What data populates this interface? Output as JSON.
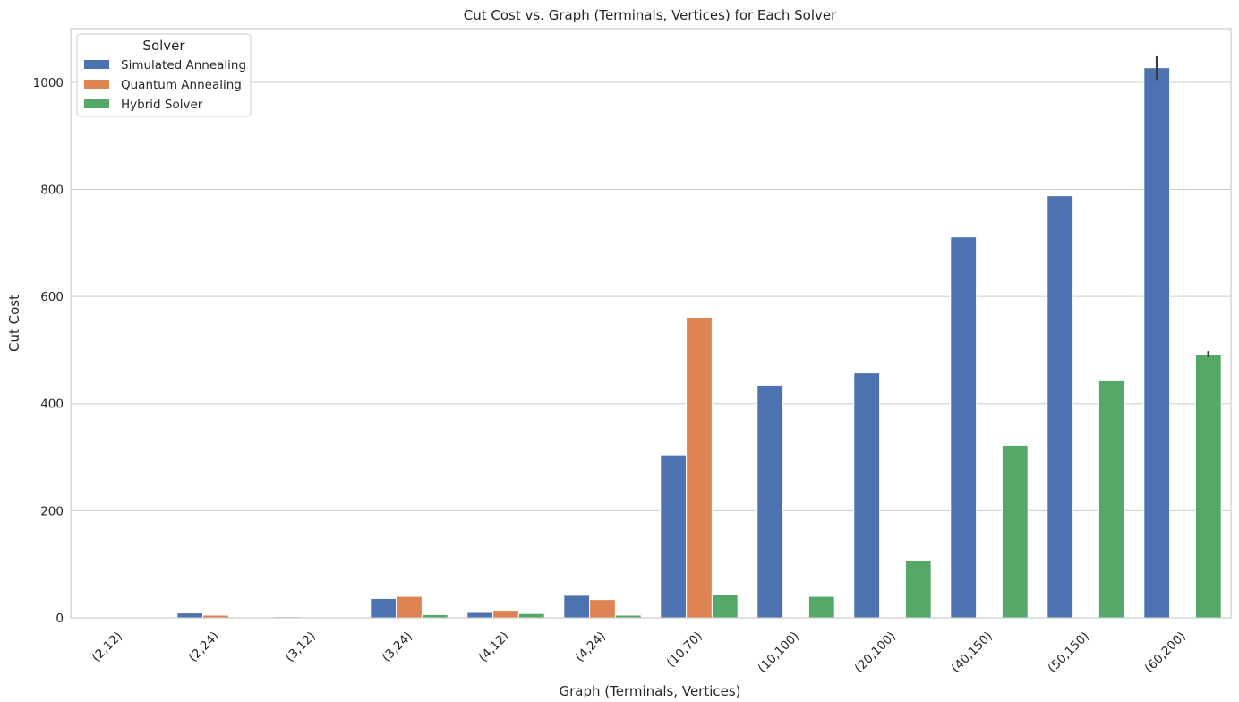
{
  "chart_data": {
    "type": "bar",
    "title": "Cut Cost vs. Graph (Terminals, Vertices) for Each Solver",
    "xlabel": "Graph (Terminals, Vertices)",
    "ylabel": "Cut Cost",
    "ylim": [
      0,
      1100
    ],
    "yticks": [
      0,
      200,
      400,
      600,
      800,
      1000
    ],
    "grid": true,
    "legend": {
      "title": "Solver",
      "position": "top-left"
    },
    "categories": [
      "(2,12)",
      "(2,24)",
      "(3,12)",
      "(3,24)",
      "(4,12)",
      "(4,24)",
      "(10,70)",
      "(10,100)",
      "(20,100)",
      "(40,150)",
      "(50,150)",
      "(60,200)"
    ],
    "series": [
      {
        "name": "Simulated Annealing",
        "color": "#4c72b0",
        "values": [
          1,
          9,
          2,
          36,
          10,
          42,
          304,
          434,
          457,
          711,
          788,
          1027
        ],
        "error": [
          null,
          null,
          null,
          null,
          null,
          null,
          null,
          null,
          null,
          null,
          null,
          [
            1004,
            1050
          ]
        ]
      },
      {
        "name": "Quantum Annealing",
        "color": "#dd8452",
        "values": [
          1,
          5,
          1,
          40,
          14,
          34,
          561,
          null,
          null,
          null,
          null,
          null
        ],
        "error": [
          null,
          null,
          null,
          null,
          null,
          null,
          null,
          null,
          null,
          null,
          null,
          null
        ]
      },
      {
        "name": "Hybrid Solver",
        "color": "#55a868",
        "values": [
          1,
          1,
          1,
          6,
          8,
          5,
          43,
          40,
          107,
          322,
          444,
          492
        ],
        "error": [
          null,
          null,
          null,
          null,
          null,
          null,
          null,
          null,
          null,
          null,
          null,
          [
            487,
            498
          ]
        ]
      }
    ]
  }
}
